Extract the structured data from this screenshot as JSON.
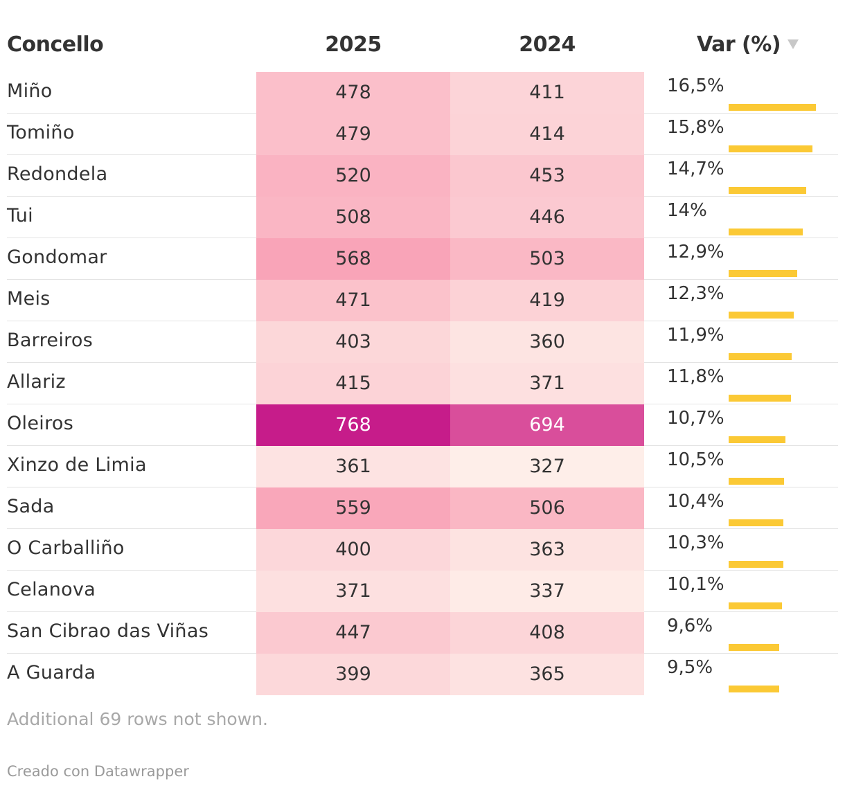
{
  "chart_data": {
    "type": "table",
    "columns": [
      "Concello",
      "2025",
      "2024",
      "Var (%)"
    ],
    "sort_icon": "sort-descending-icon",
    "rows": [
      {
        "name": "Miño",
        "y2025": 478,
        "y2024": 411,
        "var": 16.5,
        "var_label": "16,5%"
      },
      {
        "name": "Tomiño",
        "y2025": 479,
        "y2024": 414,
        "var": 15.8,
        "var_label": "15,8%"
      },
      {
        "name": "Redondela",
        "y2025": 520,
        "y2024": 453,
        "var": 14.7,
        "var_label": "14,7%"
      },
      {
        "name": "Tui",
        "y2025": 508,
        "y2024": 446,
        "var": 14.0,
        "var_label": "14%"
      },
      {
        "name": "Gondomar",
        "y2025": 568,
        "y2024": 503,
        "var": 12.9,
        "var_label": "12,9%"
      },
      {
        "name": "Meis",
        "y2025": 471,
        "y2024": 419,
        "var": 12.3,
        "var_label": "12,3%"
      },
      {
        "name": "Barreiros",
        "y2025": 403,
        "y2024": 360,
        "var": 11.9,
        "var_label": "11,9%"
      },
      {
        "name": "Allariz",
        "y2025": 415,
        "y2024": 371,
        "var": 11.8,
        "var_label": "11,8%"
      },
      {
        "name": "Oleiros",
        "y2025": 768,
        "y2024": 694,
        "var": 10.7,
        "var_label": "10,7%"
      },
      {
        "name": "Xinzo de Limia",
        "y2025": 361,
        "y2024": 327,
        "var": 10.5,
        "var_label": "10,5%"
      },
      {
        "name": "Sada",
        "y2025": 559,
        "y2024": 506,
        "var": 10.4,
        "var_label": "10,4%"
      },
      {
        "name": "O Carballiño",
        "y2025": 400,
        "y2024": 363,
        "var": 10.3,
        "var_label": "10,3%"
      },
      {
        "name": "Celanova",
        "y2025": 371,
        "y2024": 337,
        "var": 10.1,
        "var_label": "10,1%"
      },
      {
        "name": "San Cibrao das Viñas",
        "y2025": 447,
        "y2024": 408,
        "var": 9.6,
        "var_label": "9,6%"
      },
      {
        "name": "A Guarda",
        "y2025": 399,
        "y2024": 365,
        "var": 9.5,
        "var_label": "9,5%"
      }
    ],
    "var_bar_max": 16.5,
    "heatmap_range": [
      320,
      770
    ],
    "colors": {
      "heat_low": "#fef0ea",
      "heat_mid": "#f9a4b8",
      "heat_high": "#c51b8a",
      "bar": "#fbc935",
      "text_dark": "#333333",
      "text_light": "#ffffff"
    }
  },
  "footer": {
    "note": "Additional 69 rows not shown.",
    "credit": "Creado con Datawrapper"
  }
}
